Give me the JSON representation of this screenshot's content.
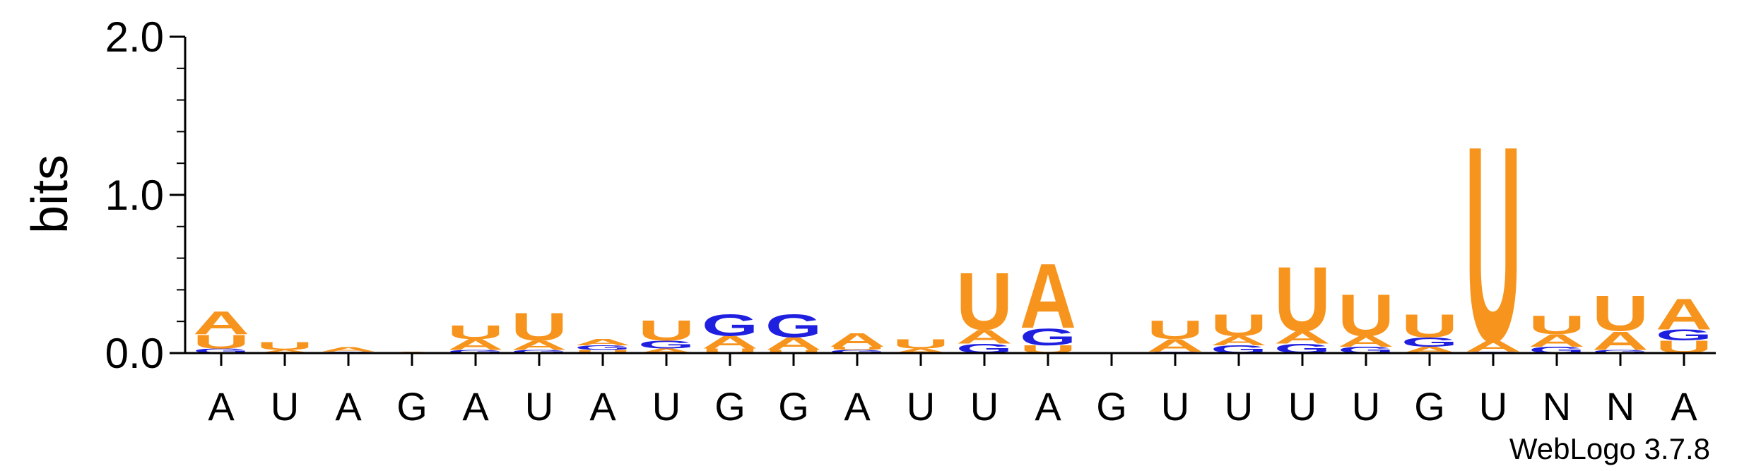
{
  "chart_data": {
    "type": "sequence-logo",
    "ylabel": "bits",
    "ylim": [
      0,
      2.0
    ],
    "yticks": [
      {
        "value": 0,
        "label": "0.0"
      },
      {
        "value": 1,
        "label": "1.0"
      },
      {
        "value": 2,
        "label": "2.0"
      }
    ],
    "colors": {
      "A": "#f7941d",
      "U": "#f7941d",
      "G": "#1f1fe0",
      "C": "#1f1fe0"
    },
    "positions": [
      {
        "label": "A",
        "stack": [
          [
            "G",
            0.03
          ],
          [
            "U",
            0.09
          ],
          [
            "A",
            0.15
          ]
        ]
      },
      {
        "label": "U",
        "stack": [
          [
            "A",
            0.02
          ],
          [
            "U",
            0.05
          ]
        ]
      },
      {
        "label": "A",
        "stack": [
          [
            "G",
            0.01
          ],
          [
            "A",
            0.03
          ]
        ]
      },
      {
        "label": "G",
        "stack": [
          [
            "A",
            0.01
          ]
        ]
      },
      {
        "label": "A",
        "stack": [
          [
            "G",
            0.02
          ],
          [
            "A",
            0.07
          ],
          [
            "U",
            0.09
          ]
        ]
      },
      {
        "label": "U",
        "stack": [
          [
            "G",
            0.02
          ],
          [
            "A",
            0.06
          ],
          [
            "U",
            0.18
          ]
        ]
      },
      {
        "label": "A",
        "stack": [
          [
            "U",
            0.02
          ],
          [
            "G",
            0.03
          ],
          [
            "A",
            0.04
          ]
        ]
      },
      {
        "label": "U",
        "stack": [
          [
            "A",
            0.03
          ],
          [
            "G",
            0.05
          ],
          [
            "U",
            0.13
          ]
        ]
      },
      {
        "label": "G",
        "stack": [
          [
            "U",
            0.03
          ],
          [
            "A",
            0.08
          ],
          [
            "G",
            0.14
          ]
        ]
      },
      {
        "label": "G",
        "stack": [
          [
            "U",
            0.02
          ],
          [
            "A",
            0.08
          ],
          [
            "G",
            0.15
          ]
        ]
      },
      {
        "label": "A",
        "stack": [
          [
            "G",
            0.02
          ],
          [
            "U",
            0.02
          ],
          [
            "A",
            0.09
          ]
        ]
      },
      {
        "label": "U",
        "stack": [
          [
            "A",
            0.03
          ],
          [
            "U",
            0.06
          ]
        ]
      },
      {
        "label": "U",
        "stack": [
          [
            "G",
            0.06
          ],
          [
            "A",
            0.09
          ],
          [
            "U",
            0.37
          ]
        ]
      },
      {
        "label": "A",
        "stack": [
          [
            "U",
            0.05
          ],
          [
            "G",
            0.11
          ],
          [
            "A",
            0.42
          ]
        ]
      },
      {
        "label": "G",
        "stack": []
      },
      {
        "label": "U",
        "stack": [
          [
            "G",
            0.01
          ],
          [
            "A",
            0.08
          ],
          [
            "U",
            0.12
          ]
        ]
      },
      {
        "label": "U",
        "stack": [
          [
            "G",
            0.05
          ],
          [
            "A",
            0.06
          ],
          [
            "U",
            0.14
          ]
        ]
      },
      {
        "label": "U",
        "stack": [
          [
            "G",
            0.06
          ],
          [
            "A",
            0.08
          ],
          [
            "U",
            0.42
          ]
        ]
      },
      {
        "label": "U",
        "stack": [
          [
            "G",
            0.04
          ],
          [
            "A",
            0.07
          ],
          [
            "U",
            0.27
          ]
        ]
      },
      {
        "label": "G",
        "stack": [
          [
            "A",
            0.04
          ],
          [
            "G",
            0.06
          ],
          [
            "U",
            0.15
          ]
        ]
      },
      {
        "label": "U",
        "stack": [
          [
            "G",
            0.01
          ],
          [
            "A",
            0.07
          ],
          [
            "U",
            1.27
          ]
        ]
      },
      {
        "label": "N",
        "stack": [
          [
            "G",
            0.04
          ],
          [
            "A",
            0.08
          ],
          [
            "U",
            0.12
          ]
        ]
      },
      {
        "label": "N",
        "stack": [
          [
            "G",
            0.02
          ],
          [
            "A",
            0.12
          ],
          [
            "U",
            0.23
          ]
        ]
      },
      {
        "label": "A",
        "stack": [
          [
            "U",
            0.08
          ],
          [
            "G",
            0.07
          ],
          [
            "A",
            0.2
          ]
        ]
      }
    ],
    "credit": "WebLogo 3.7.8"
  }
}
